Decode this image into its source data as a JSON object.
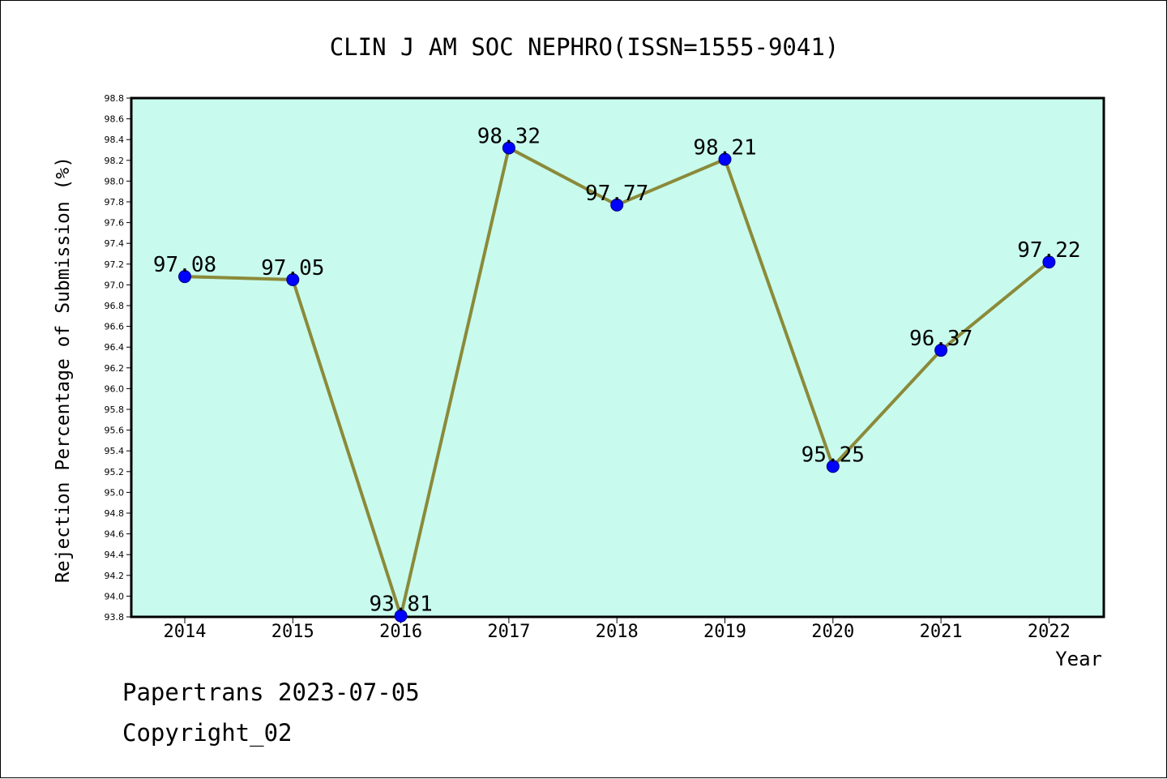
{
  "chart_data": {
    "type": "line",
    "title": "CLIN J AM SOC NEPHRO(ISSN=1555-9041)",
    "xlabel": "Year",
    "ylabel": "Rejection Percentage of Submission (%)",
    "ylim": [
      93.8,
      98.8
    ],
    "y_tick_step": 0.2,
    "y_ticks": [
      "93.8",
      "94.0",
      "94.2",
      "94.4",
      "94.6",
      "94.8",
      "95.0",
      "95.2",
      "95.4",
      "95.6",
      "95.8",
      "96.0",
      "96.2",
      "96.4",
      "96.6",
      "96.8",
      "97.0",
      "97.2",
      "97.4",
      "97.6",
      "97.8",
      "98.0",
      "98.2",
      "98.4",
      "98.6",
      "98.8"
    ],
    "categories": [
      "2014",
      "2015",
      "2016",
      "2017",
      "2018",
      "2019",
      "2020",
      "2021",
      "2022"
    ],
    "series": [
      {
        "values": [
          97.08,
          97.05,
          93.81,
          98.32,
          97.77,
          98.21,
          95.25,
          96.37,
          97.22
        ],
        "labels": [
          "97.08",
          "97.05",
          "93.81",
          "98.32",
          "97.77",
          "98.21",
          "95.25",
          "96.37",
          "97.22"
        ],
        "line_color": "#8b8a3a",
        "marker_color": "#0000ff"
      }
    ],
    "plot_background": "#c8fbed",
    "grid": false,
    "legend": "none"
  },
  "footer": {
    "line1": "Papertrans 2023-07-05",
    "line2": "Copyright_02"
  }
}
